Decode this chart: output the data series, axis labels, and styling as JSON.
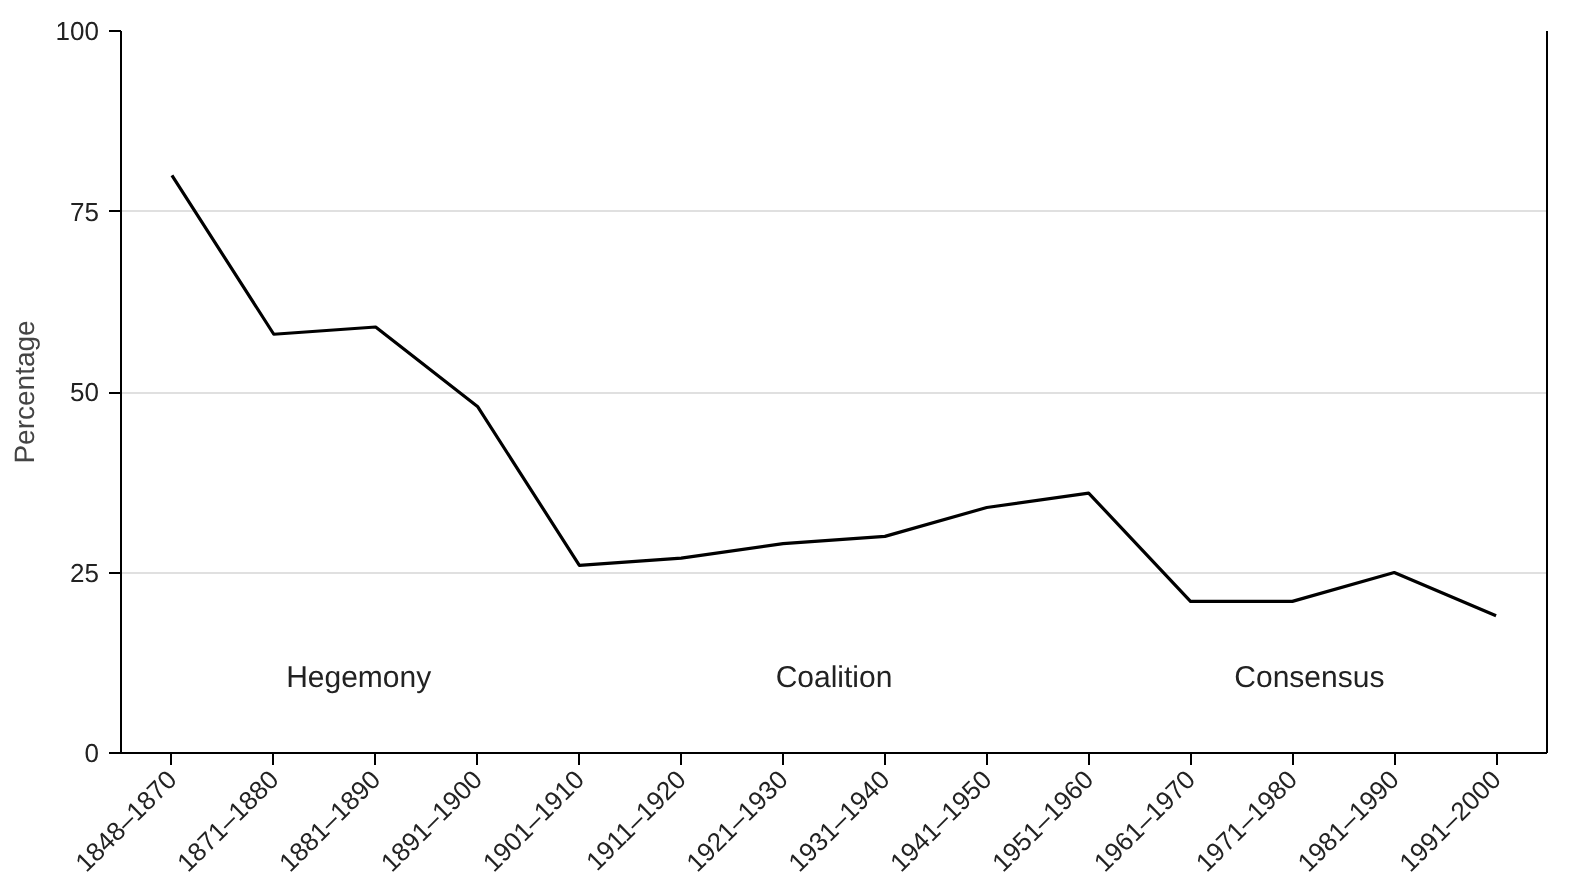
{
  "chart_data": {
    "type": "line",
    "ylabel": "Percentage",
    "categories": [
      "1848–1870",
      "1871–1880",
      "1881–1890",
      "1891–1900",
      "1901–1910",
      "1911–1920",
      "1921–1930",
      "1931–1940",
      "1941–1950",
      "1951–1960",
      "1961–1970",
      "1971–1980",
      "1981–1990",
      "1991–2000"
    ],
    "series": [
      {
        "color": "#000000",
        "values": [
          80,
          58,
          59,
          48,
          26,
          27,
          29,
          30,
          34,
          36,
          21,
          21,
          25,
          19
        ]
      }
    ],
    "ylim": [
      0,
      100
    ],
    "yticks": [
      0,
      25,
      50,
      75,
      100
    ],
    "grid": "y",
    "line_style": "solid",
    "annotations": [
      "Hegemony",
      "Coalition",
      "Consensus"
    ]
  }
}
